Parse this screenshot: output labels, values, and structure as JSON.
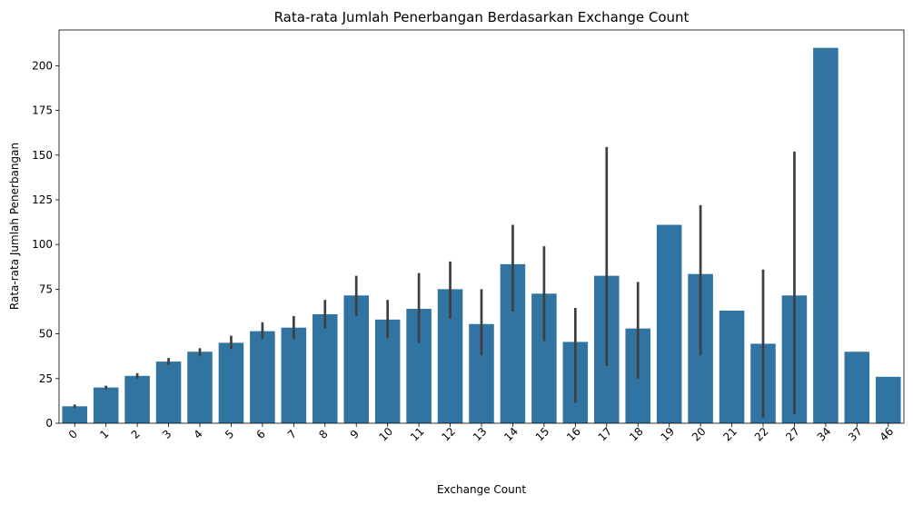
{
  "chart_data": {
    "type": "bar",
    "title": "Rata-rata Jumlah Penerbangan Berdasarkan Exchange Count",
    "xlabel": "Exchange Count",
    "ylabel": "Rata-rata Jumlah Penerbangan",
    "categories": [
      "0",
      "1",
      "2",
      "3",
      "4",
      "5",
      "6",
      "7",
      "8",
      "9",
      "10",
      "11",
      "12",
      "13",
      "14",
      "15",
      "16",
      "17",
      "18",
      "19",
      "20",
      "21",
      "22",
      "27",
      "34",
      "37",
      "46"
    ],
    "values": [
      9.5,
      20,
      26.5,
      34.5,
      40,
      45,
      51.5,
      53.5,
      61,
      71.5,
      58,
      64,
      75,
      55.5,
      89,
      72.5,
      45.5,
      82.5,
      53,
      111,
      83.5,
      63,
      44.5,
      71.5,
      210,
      40,
      26
    ],
    "error_low": [
      8.5,
      19,
      25,
      32.5,
      37.5,
      41.5,
      47,
      47,
      53,
      60,
      47.5,
      45,
      58.5,
      38,
      62.5,
      46,
      11.5,
      32,
      25,
      null,
      38,
      null,
      3,
      5,
      null,
      null,
      null
    ],
    "error_high": [
      10.5,
      21,
      28,
      36.5,
      42,
      49,
      56.5,
      60,
      69,
      82.5,
      69,
      84,
      90.5,
      75,
      111,
      99,
      64.5,
      154.5,
      79,
      null,
      122,
      null,
      86,
      152,
      null,
      null,
      null
    ],
    "ylim": [
      0,
      220
    ],
    "yticks": [
      0,
      25,
      50,
      75,
      100,
      125,
      150,
      175,
      200
    ],
    "grid": false,
    "colors": {
      "bar": "#3274a1",
      "error": "#3f3f3f",
      "axis": "#000000"
    }
  }
}
